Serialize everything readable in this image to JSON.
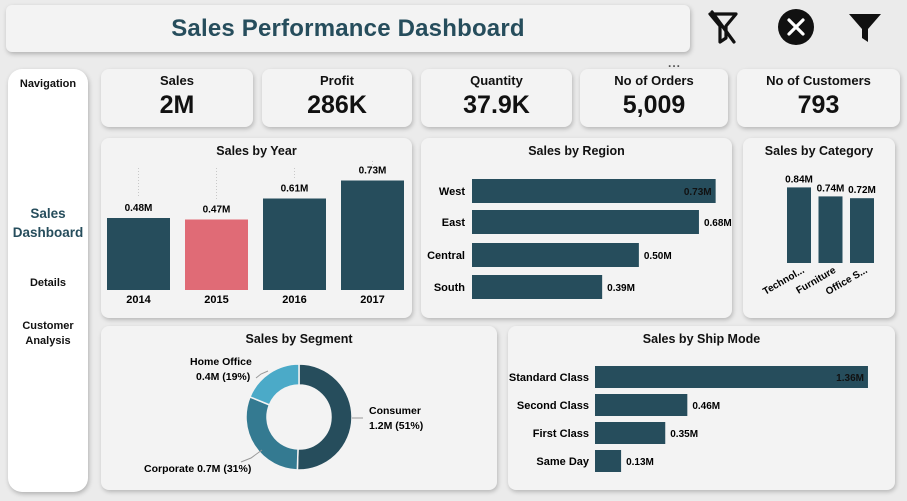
{
  "header": {
    "title": "Sales Performance Dashboard",
    "more_label": "..."
  },
  "toolbar": {
    "clear_filters_icon": "filter-clear-icon",
    "close_icon": "close-icon",
    "filter_icon": "filter-icon"
  },
  "nav": {
    "heading": "Navigation",
    "items": [
      {
        "label": "Sales Dashboard",
        "active": true
      },
      {
        "label": "Details",
        "active": false
      },
      {
        "label": "Customer Analysis",
        "active": false
      }
    ]
  },
  "kpis": [
    {
      "label": "Sales",
      "value": "2M"
    },
    {
      "label": "Profit",
      "value": "286K"
    },
    {
      "label": "Quantity",
      "value": "37.9K"
    },
    {
      "label": "No of Orders",
      "value": "5,009"
    },
    {
      "label": "No of Customers",
      "value": "793"
    }
  ],
  "colors": {
    "primary": "#264d5c",
    "highlight": "#e06b76",
    "light": "#4baac8",
    "mid": "#347a91"
  },
  "chart_data": [
    {
      "id": "year",
      "type": "bar",
      "title": "Sales by Year",
      "categories": [
        "2014",
        "2015",
        "2016",
        "2017"
      ],
      "values": [
        0.48,
        0.47,
        0.61,
        0.73
      ],
      "labels": [
        "0.48M",
        "0.47M",
        "0.61M",
        "0.73M"
      ],
      "highlighted": "2015",
      "ylim": [
        0,
        0.8
      ]
    },
    {
      "id": "region",
      "type": "bar",
      "orientation": "horizontal",
      "title": "Sales by Region",
      "categories": [
        "West",
        "East",
        "Central",
        "South"
      ],
      "values": [
        0.73,
        0.68,
        0.5,
        0.39
      ],
      "labels": [
        "0.73M",
        "0.68M",
        "0.50M",
        "0.39M"
      ],
      "xlim": [
        0,
        0.8
      ]
    },
    {
      "id": "category",
      "type": "bar",
      "title": "Sales by Category",
      "categories": [
        "Technol...",
        "Furniture",
        "Office S..."
      ],
      "values": [
        0.84,
        0.74,
        0.72
      ],
      "labels": [
        "0.84M",
        "0.74M",
        "0.72M"
      ],
      "ylim": [
        0,
        0.9
      ]
    },
    {
      "id": "segment",
      "type": "pie",
      "title": "Sales by Segment",
      "categories": [
        "Consumer",
        "Corporate",
        "Home Office"
      ],
      "values": [
        51,
        31,
        19
      ],
      "labels": [
        "Consumer",
        "Corporate 0.7M (31%)",
        "Home Office"
      ],
      "sublabels": [
        "1.2M (51%)",
        "",
        "0.4M (19%)"
      ]
    },
    {
      "id": "shipmode",
      "type": "bar",
      "orientation": "horizontal",
      "title": "Sales by Ship Mode",
      "categories": [
        "Standard Class",
        "Second Class",
        "First Class",
        "Same Day"
      ],
      "values": [
        1.36,
        0.46,
        0.35,
        0.13
      ],
      "labels": [
        "1.36M",
        "0.46M",
        "0.35M",
        "0.13M"
      ],
      "xlim": [
        0,
        1.4
      ]
    }
  ]
}
